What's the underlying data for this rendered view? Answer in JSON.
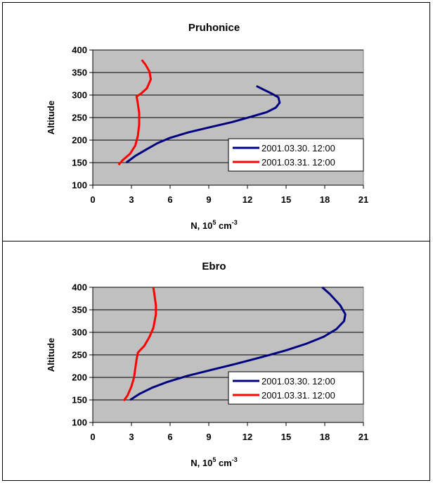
{
  "chart_data": [
    {
      "type": "line",
      "title": "Pruhonice",
      "xlabel_main": "N, 10",
      "xlabel_sup1": "5",
      "xlabel_mid": " cm",
      "xlabel_sup2": "-3",
      "ylabel": "Altitude",
      "xlim": [
        0,
        21
      ],
      "ylim": [
        100,
        400
      ],
      "xticks": [
        "0",
        "3",
        "6",
        "9",
        "12",
        "15",
        "18",
        "21"
      ],
      "yticks": [
        "100",
        "150",
        "200",
        "250",
        "300",
        "350",
        "400"
      ],
      "grid": "horizontal",
      "legend_position": "bottom-right",
      "series": [
        {
          "name": "2001.03.30. 12:00",
          "color": "#000080",
          "x": [
            2.6,
            3.3,
            4.2,
            5.0,
            6.0,
            7.4,
            9.0,
            10.8,
            12.3,
            13.5,
            14.2,
            14.5,
            14.4,
            13.9,
            12.7
          ],
          "y": [
            150,
            165,
            180,
            193,
            205,
            217,
            228,
            240,
            252,
            262,
            272,
            283,
            295,
            303,
            320
          ]
        },
        {
          "name": "2001.03.31. 12:00",
          "color": "#ff0000",
          "x": [
            2.0,
            2.3,
            2.9,
            3.3,
            3.5,
            3.6,
            3.6,
            3.5,
            3.4,
            3.7,
            4.2,
            4.5,
            4.4,
            4.1,
            3.8
          ],
          "y": [
            145,
            155,
            170,
            188,
            210,
            235,
            260,
            280,
            297,
            302,
            315,
            335,
            352,
            367,
            378
          ]
        }
      ]
    },
    {
      "type": "line",
      "title": "Ebro",
      "xlabel_main": "N, 10",
      "xlabel_sup1": "5",
      "xlabel_mid": " cm",
      "xlabel_sup2": "-3",
      "ylabel": "Altitude",
      "xlim": [
        0,
        21
      ],
      "ylim": [
        100,
        400
      ],
      "xticks": [
        "0",
        "3",
        "6",
        "9",
        "12",
        "15",
        "18",
        "21"
      ],
      "yticks": [
        "100",
        "150",
        "200",
        "250",
        "300",
        "350",
        "400"
      ],
      "grid": "horizontal",
      "legend_position": "bottom-right",
      "series": [
        {
          "name": "2001.03.30. 12:00",
          "color": "#000080",
          "x": [
            2.9,
            3.6,
            4.6,
            5.8,
            7.3,
            9.1,
            11.1,
            13.1,
            15.0,
            16.6,
            17.9,
            18.9,
            19.5,
            19.6,
            19.2,
            18.4,
            17.8
          ],
          "y": [
            150,
            163,
            177,
            190,
            203,
            216,
            230,
            245,
            260,
            275,
            290,
            307,
            325,
            340,
            360,
            385,
            400
          ]
        },
        {
          "name": "2001.03.31. 12:00",
          "color": "#ff0000",
          "x": [
            2.4,
            2.7,
            3.0,
            3.2,
            3.3,
            3.4,
            3.5,
            4.0,
            4.4,
            4.7,
            4.9,
            4.9,
            4.8,
            4.7
          ],
          "y": [
            148,
            160,
            180,
            200,
            220,
            240,
            255,
            270,
            290,
            310,
            340,
            360,
            380,
            400
          ]
        }
      ]
    }
  ]
}
